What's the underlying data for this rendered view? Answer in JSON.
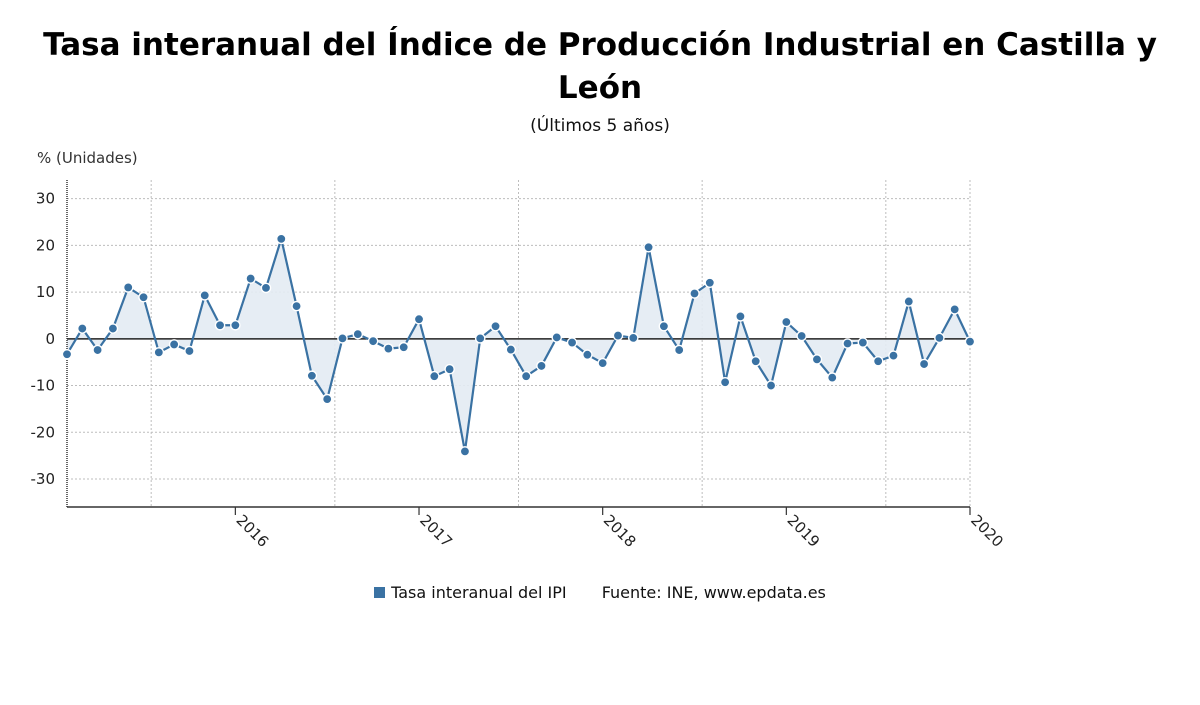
{
  "title": "Tasa interanual del Índice de Producción Industrial en Castilla y León",
  "subtitle": "(Últimos 5 años)",
  "colors": {
    "line": "#3a72a3",
    "fill": "#e3ebf3",
    "grid": "#bdbdbd",
    "zero": "#222222"
  },
  "chart_data": {
    "type": "line",
    "title": "Tasa interanual del Índice de Producción Industrial en Castilla y León",
    "subtitle": "(Últimos 5 años)",
    "ylabel": "% (Unidades)",
    "xlabel": "",
    "ylim": [
      -36,
      34
    ],
    "yticks": [
      -30,
      -20,
      -10,
      0,
      10,
      20,
      30
    ],
    "xticks": [
      {
        "label": "2016",
        "index": 11
      },
      {
        "label": "2017",
        "index": 23
      },
      {
        "label": "2018",
        "index": 35
      },
      {
        "label": "2019",
        "index": 47
      },
      {
        "label": "2020",
        "index": 59
      }
    ],
    "grid": true,
    "legend_position": "bottom",
    "series": [
      {
        "name": "Tasa interanual del IPI",
        "values": [
          -3.3,
          2.2,
          -2.4,
          2.2,
          11.0,
          8.9,
          -2.9,
          -1.2,
          -2.6,
          9.3,
          2.9,
          2.9,
          12.9,
          10.9,
          21.4,
          7.0,
          -7.9,
          -12.9,
          0.1,
          1.0,
          -0.5,
          -2.1,
          -1.8,
          4.2,
          -8.0,
          -6.5,
          -24.1,
          0.1,
          2.7,
          -2.3,
          -8.0,
          -5.8,
          0.3,
          -0.8,
          -3.4,
          -5.2,
          0.7,
          0.2,
          19.6,
          2.7,
          -2.4,
          9.7,
          12.0,
          -9.3,
          4.8,
          -4.8,
          -10.0,
          3.6,
          0.6,
          -4.4,
          -8.3,
          -1.0,
          -0.8,
          -4.8,
          -3.6,
          8.0,
          -5.4,
          0.2,
          6.3,
          -0.6
        ]
      }
    ],
    "legend_entries": [
      "Tasa interanual del IPI"
    ],
    "source": "Fuente: INE, www.epdata.es"
  }
}
